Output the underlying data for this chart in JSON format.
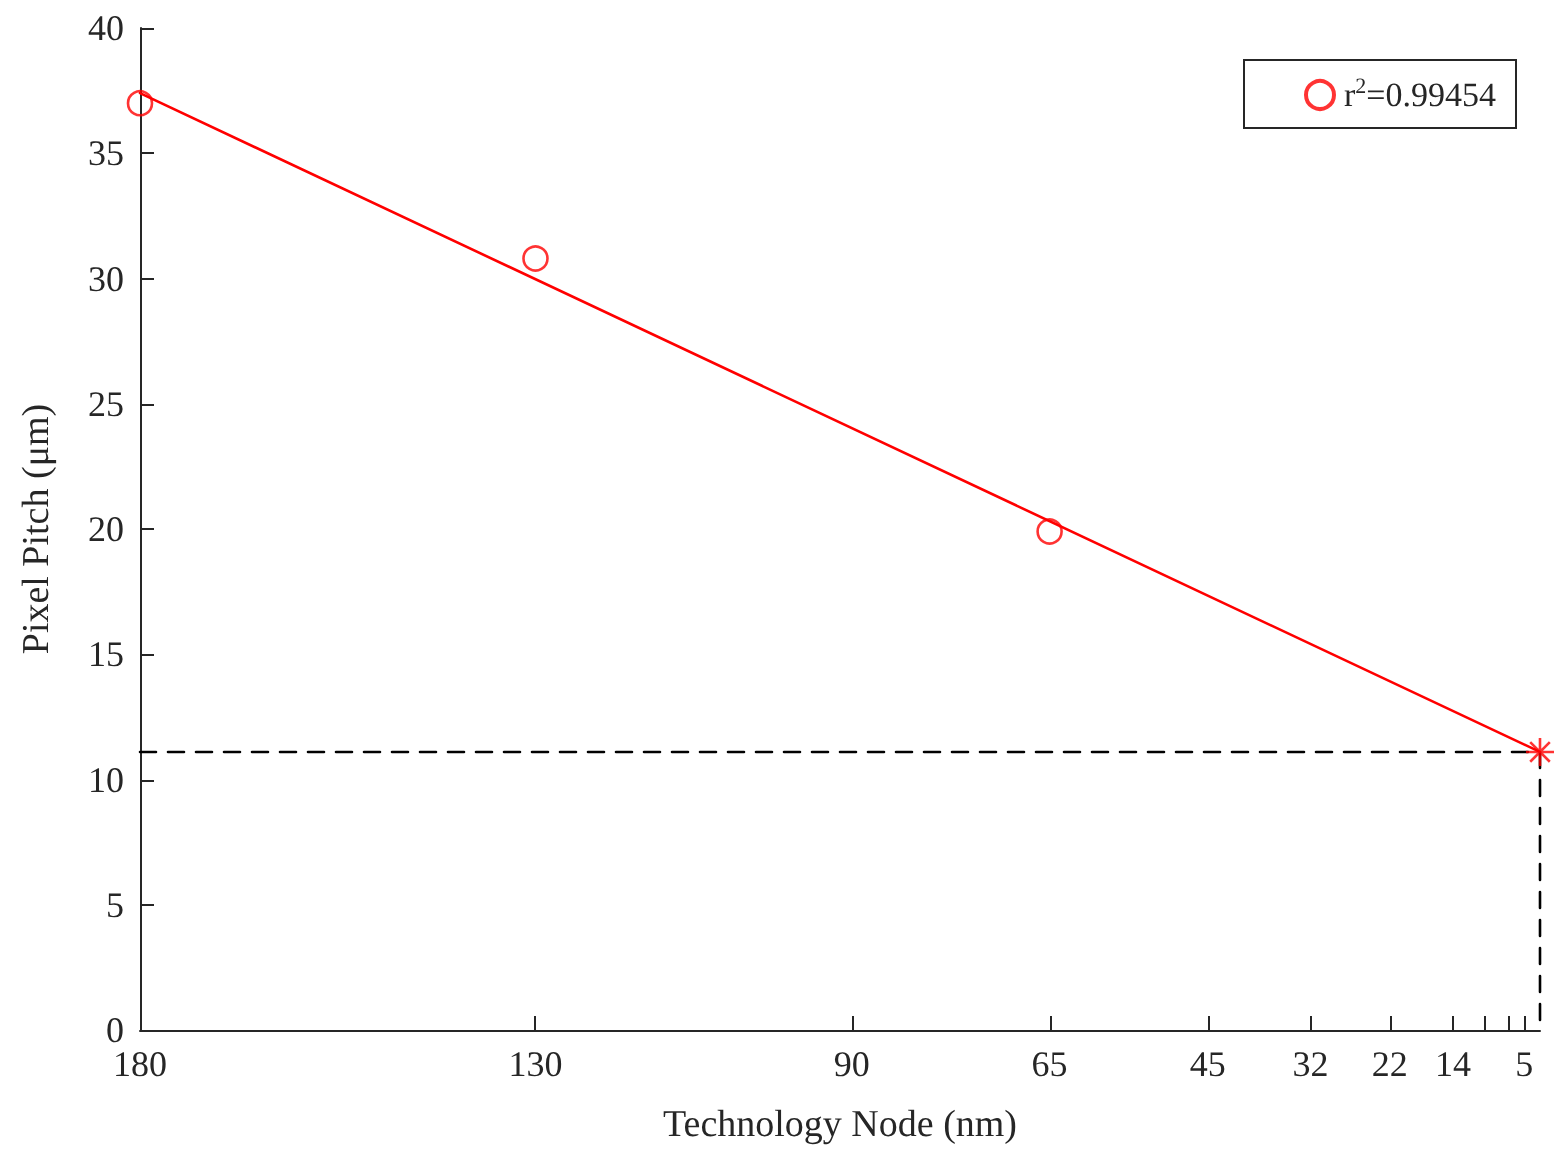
{
  "chart_data": {
    "type": "scatter",
    "xlabel": "Technology Node (nm)",
    "ylabel": "Pixel Pitch (μm)",
    "xlim": [
      180,
      3
    ],
    "xticks": [
      180,
      130,
      90,
      65,
      45,
      32,
      22,
      14,
      {
        "value": 10,
        "label": null
      },
      {
        "value": 7,
        "label": null
      },
      5
    ],
    "ylim": [
      0,
      40
    ],
    "yticks": [
      0,
      5,
      10,
      15,
      20,
      25,
      30,
      35,
      40
    ],
    "grid": false,
    "legend": "top right",
    "series": [
      {
        "name": "r$^{2}$=0.99454",
        "marker": "circle",
        "color": "#ff0000",
        "x": [
          180,
          130,
          65
        ],
        "values": [
          37.0,
          30.8,
          19.9
        ]
      },
      {
        "type": "line",
        "marker": "none",
        "color": "#ff0000",
        "line_style": "solid",
        "x": [
          180,
          3
        ],
        "values": [
          37.4,
          11.1
        ]
      },
      {
        "marker": "cross",
        "color": "#ff0000",
        "x": [
          3
        ],
        "values": [
          11.1
        ]
      },
      {
        "type": "line",
        "marker": "none",
        "color": "#000000",
        "line_style": "dashed",
        "x": [
          180,
          3,
          3
        ],
        "values": [
          11.1,
          11.1,
          0
        ]
      }
    ]
  }
}
